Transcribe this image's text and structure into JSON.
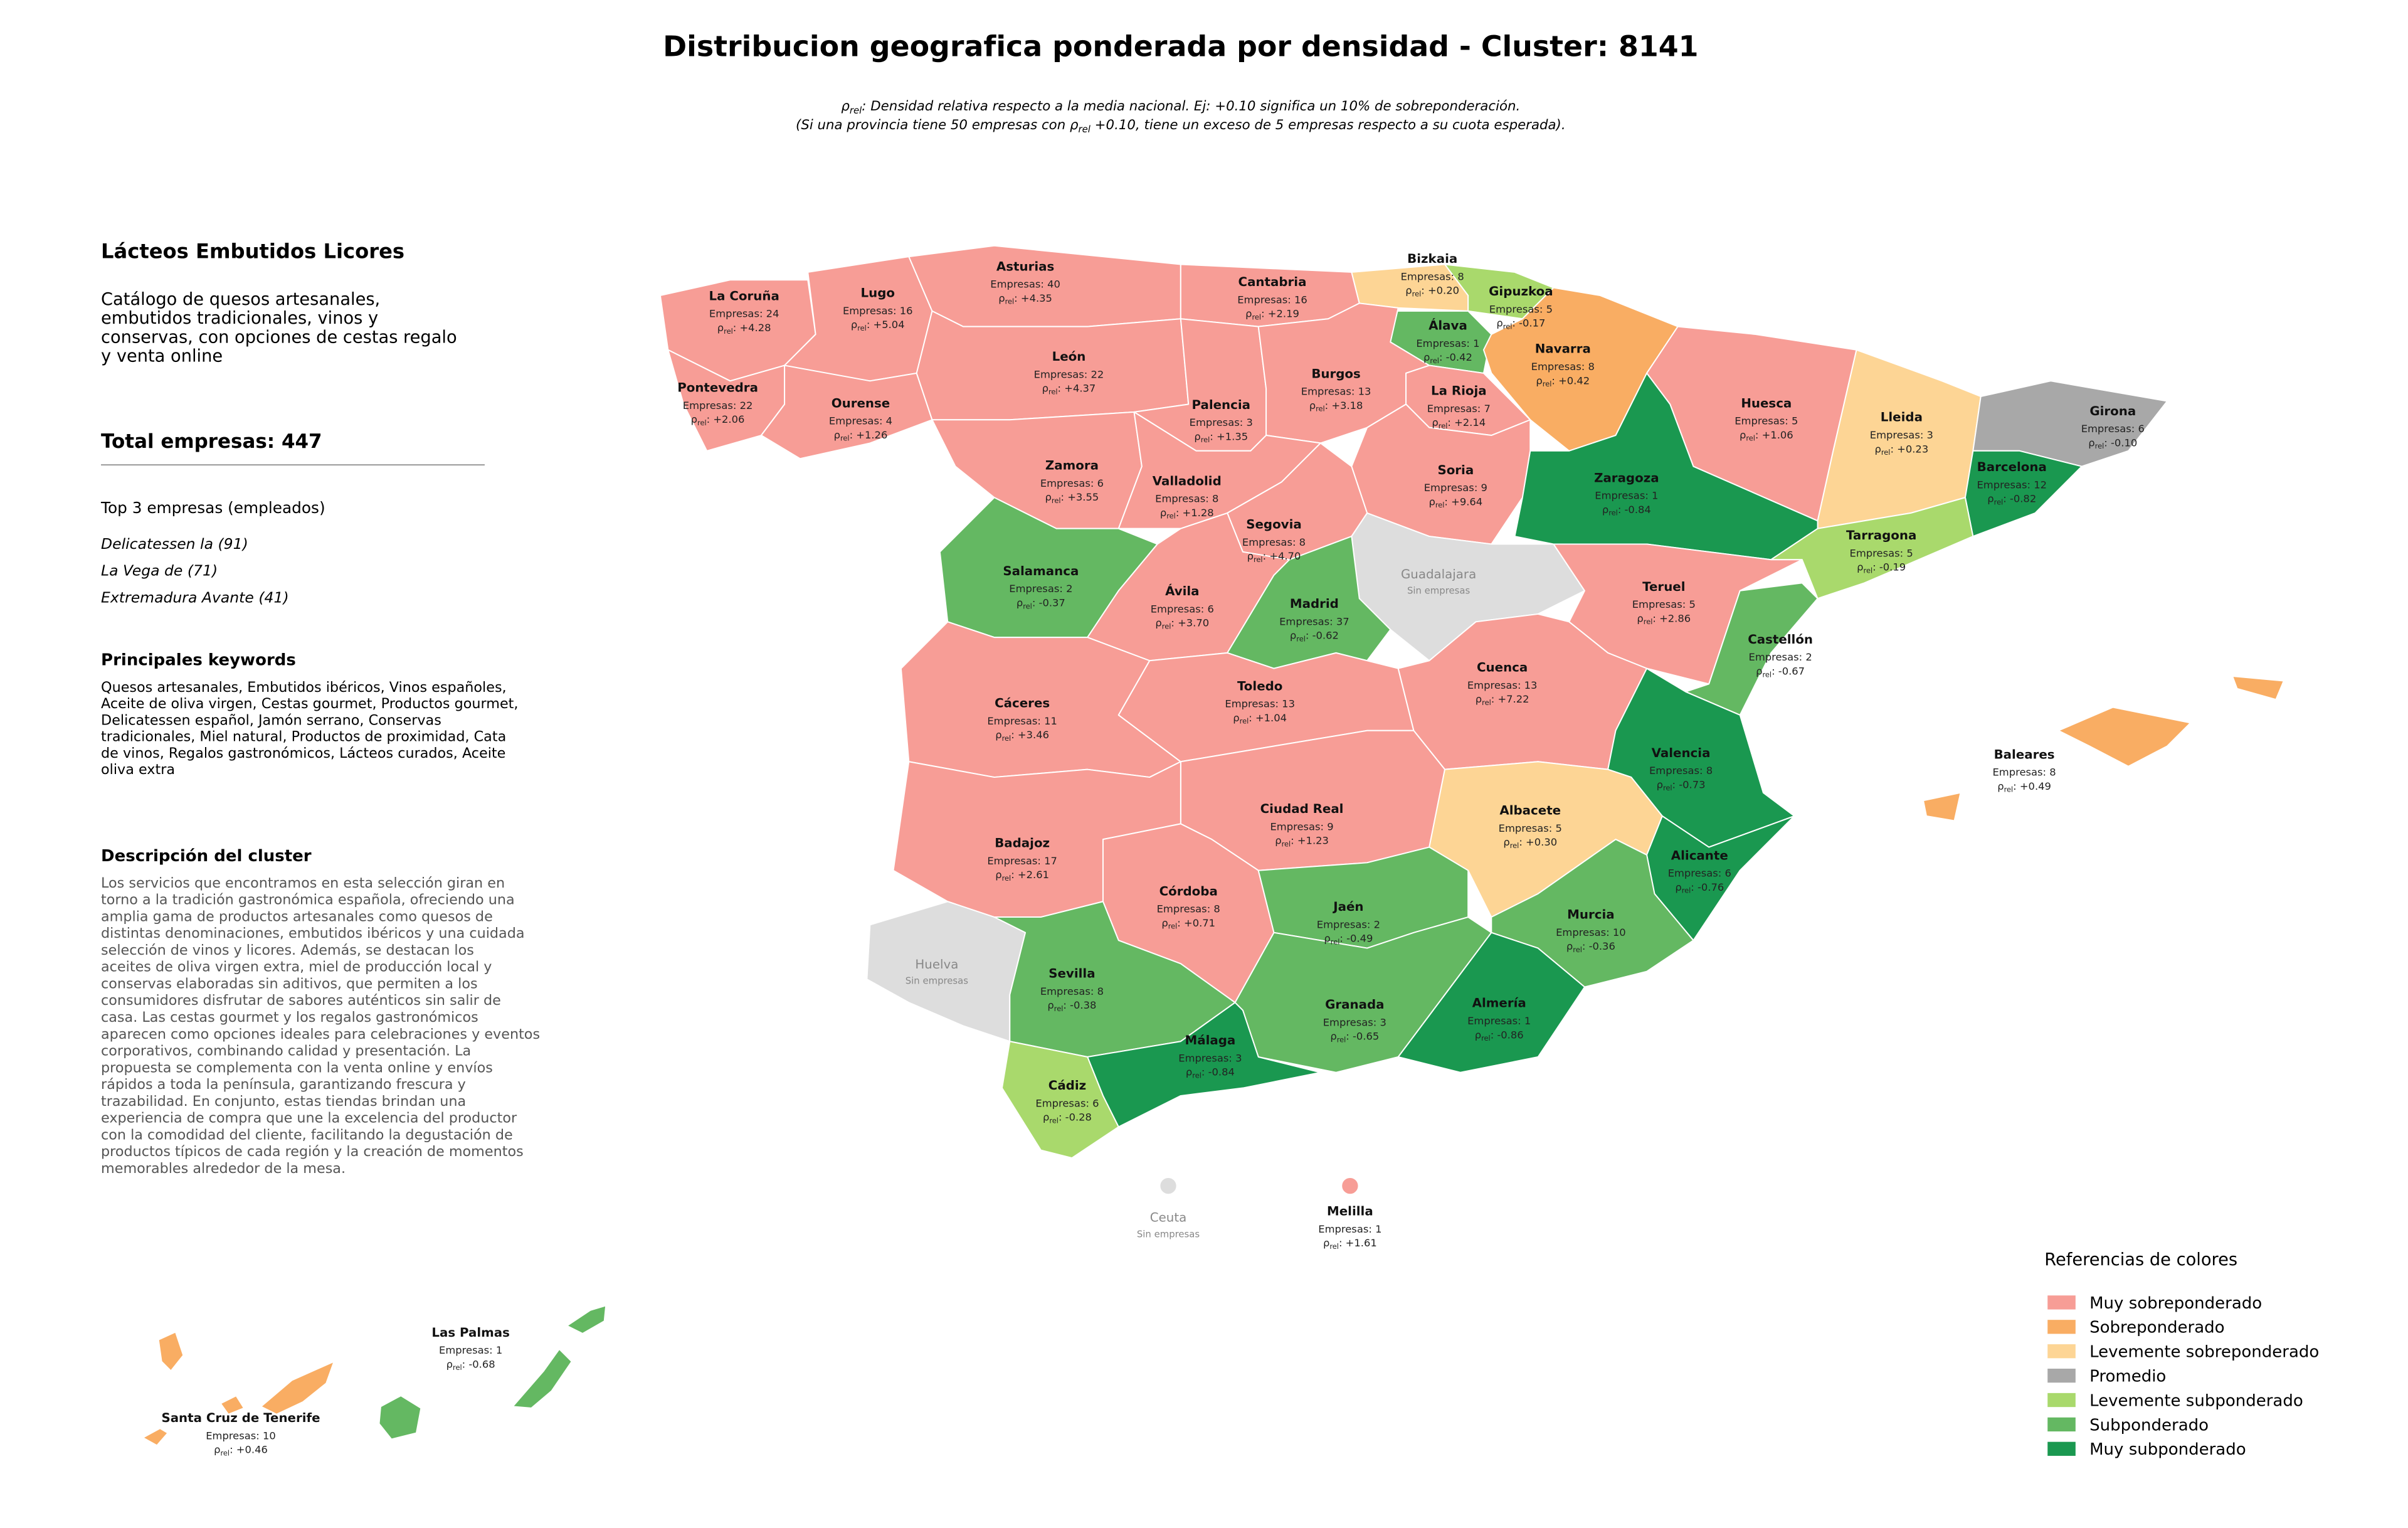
{
  "title": "Distribucion geografica ponderada por densidad - Cluster: 8141",
  "subtitle": [
    [
      {
        "text": "ρ"
      },
      {
        "text": "rel",
        "sub": true
      },
      {
        "text": ": Densidad relativa respecto a la media nacional. Ej: +0.10 significa un 10% de sobreponderación."
      }
    ],
    [
      {
        "text": "(Si una provincia tiene 50 empresas con "
      },
      {
        "text": "ρ"
      },
      {
        "text": "rel",
        "sub": true
      },
      {
        "text": " +0.10, tiene un exceso de 5 empresas respecto a su cuota esperada)."
      }
    ]
  ],
  "sidebar": {
    "cluster_name": "Lácteos Embutidos Licores",
    "catalog": [
      "Catálogo de quesos artesanales,",
      "embutidos tradicionales, vinos y",
      "conservas, con opciones de cestas regalo",
      "y venta online"
    ],
    "total_label": "Total empresas:",
    "total": 447,
    "top_title": "Top 3 empresas (empleados)",
    "top": [
      "Delicatessen la (91)",
      "La Vega de (71)",
      "Extremadura Avante (41)"
    ],
    "keywords_title": "Principales keywords",
    "keywords": [
      "Quesos artesanales, Embutidos ibéricos, Vinos españoles,",
      "Aceite de oliva virgen, Cestas gourmet, Productos gourmet,",
      "Delicatessen español, Jamón serrano, Conservas",
      "tradicionales, Miel natural, Productos de proximidad, Cata",
      "de vinos, Regalos gastronómicos, Lácteos curados, Aceite",
      "oliva extra"
    ],
    "description_title": "Descripción del cluster",
    "description": [
      "Los servicios que encontramos en esta selección giran en",
      "torno a la tradición gastronómica española, ofreciendo una",
      "amplia gama de productos artesanales como quesos de",
      "distintas denominaciones, embutidos ibéricos y una cuidada",
      "selección de vinos y licores. Además, se destacan los",
      "aceites de oliva virgen extra, miel de producción local y",
      "conservas elaboradas sin aditivos, que permiten a los",
      "consumidores disfrutar de sabores auténticos sin salir de",
      "casa. Las cestas gourmet y los regalos gastronómicos",
      "aparecen como opciones ideales para celebraciones y eventos",
      "corporativos, combinando calidad y presentación. La",
      "propuesta se complementa con la venta online y envíos",
      "rápidos a toda la península, garantizando frescura y",
      "trazabilidad. En conjunto, estas tiendas brindan una",
      "experiencia de compra que une la excelencia del productor",
      "con la comodidad del cliente, facilitando la degustación de",
      "productos típicos de cada región y la creación de momentos",
      "memorables alrededor de la mesa."
    ]
  },
  "labels": {
    "empresas": "Empresas: ",
    "rho": "ρ",
    "rho_sub": "rel",
    "rho_sep": ": "
  },
  "provinces": [
    {
      "name": "La Coruña",
      "empresas": 24,
      "rho": {
        "value": 4.28,
        "label": "+4.28"
      },
      "color": "#f79d96"
    },
    {
      "name": "Lugo",
      "empresas": 16,
      "rho": {
        "value": 5.04,
        "label": "+5.04"
      },
      "color": "#f79d96"
    },
    {
      "name": "Asturias",
      "empresas": 40,
      "rho": {
        "value": 4.35,
        "label": "+4.35"
      },
      "color": "#f79d96"
    },
    {
      "name": "Cantabria",
      "empresas": 16,
      "rho": {
        "value": 2.19,
        "label": "+2.19"
      },
      "color": "#f79d96"
    },
    {
      "name": "Bizkaia",
      "empresas": 8,
      "rho": {
        "value": 0.2,
        "label": "+0.20"
      },
      "color": "#fdd595"
    },
    {
      "name": "Gipuzkoa",
      "empresas": 5,
      "rho": {
        "value": -0.17,
        "label": "-0.17"
      },
      "color": "#a9d96c"
    },
    {
      "name": "Álava",
      "empresas": 1,
      "rho": {
        "value": -0.42,
        "label": "-0.42"
      },
      "color": "#64b862"
    },
    {
      "name": "Navarra",
      "empresas": 8,
      "rho": {
        "value": 0.42,
        "label": "+0.42"
      },
      "color": "#f9ad63"
    },
    {
      "name": "Pontevedra",
      "empresas": 22,
      "rho": {
        "value": 2.06,
        "label": "+2.06"
      },
      "color": "#f79d96"
    },
    {
      "name": "Ourense",
      "empresas": 4,
      "rho": {
        "value": 1.26,
        "label": "+1.26"
      },
      "color": "#f79d96"
    },
    {
      "name": "León",
      "empresas": 22,
      "rho": {
        "value": 4.37,
        "label": "+4.37"
      },
      "color": "#f79d96"
    },
    {
      "name": "Palencia",
      "empresas": 3,
      "rho": {
        "value": 1.35,
        "label": "+1.35"
      },
      "color": "#f79d96"
    },
    {
      "name": "Burgos",
      "empresas": 13,
      "rho": {
        "value": 3.18,
        "label": "+3.18"
      },
      "color": "#f79d96"
    },
    {
      "name": "La Rioja",
      "empresas": 7,
      "rho": {
        "value": 2.14,
        "label": "+2.14"
      },
      "color": "#f79d96"
    },
    {
      "name": "Huesca",
      "empresas": 5,
      "rho": {
        "value": 1.06,
        "label": "+1.06"
      },
      "color": "#f79d96"
    },
    {
      "name": "Lleida",
      "empresas": 3,
      "rho": {
        "value": 0.23,
        "label": "+0.23"
      },
      "color": "#fdd595"
    },
    {
      "name": "Girona",
      "empresas": 6,
      "rho": {
        "value": -0.1,
        "label": "-0.10"
      },
      "color": "#a8a8a8"
    },
    {
      "name": "Zamora",
      "empresas": 6,
      "rho": {
        "value": 3.55,
        "label": "+3.55"
      },
      "color": "#f79d96"
    },
    {
      "name": "Valladolid",
      "empresas": 8,
      "rho": {
        "value": 1.28,
        "label": "+1.28"
      },
      "color": "#f79d96"
    },
    {
      "name": "Soria",
      "empresas": 9,
      "rho": {
        "value": 9.64,
        "label": "+9.64"
      },
      "color": "#f79d96"
    },
    {
      "name": "Zaragoza",
      "empresas": 1,
      "rho": {
        "value": -0.84,
        "label": "-0.84"
      },
      "color": "#1a9850"
    },
    {
      "name": "Barcelona",
      "empresas": 12,
      "rho": {
        "value": -0.82,
        "label": "-0.82"
      },
      "color": "#1a9850"
    },
    {
      "name": "Segovia",
      "empresas": 8,
      "rho": {
        "value": 4.7,
        "label": "+4.70"
      },
      "color": "#f79d96"
    },
    {
      "name": "Tarragona",
      "empresas": 5,
      "rho": {
        "value": -0.19,
        "label": "-0.19"
      },
      "color": "#a9d96c"
    },
    {
      "name": "Salamanca",
      "empresas": 2,
      "rho": {
        "value": -0.37,
        "label": "-0.37"
      },
      "color": "#64b862"
    },
    {
      "name": "Guadalajara",
      "note": "Sin empresas",
      "color": "#dddddd"
    },
    {
      "name": "Ávila",
      "empresas": 6,
      "rho": {
        "value": 3.7,
        "label": "+3.70"
      },
      "color": "#f79d96"
    },
    {
      "name": "Madrid",
      "empresas": 37,
      "rho": {
        "value": -0.62,
        "label": "-0.62"
      },
      "color": "#64b862"
    },
    {
      "name": "Teruel",
      "empresas": 5,
      "rho": {
        "value": 2.86,
        "label": "+2.86"
      },
      "color": "#f79d96"
    },
    {
      "name": "Castellón",
      "empresas": 2,
      "rho": {
        "value": -0.67,
        "label": "-0.67"
      },
      "color": "#64b862"
    },
    {
      "name": "Cáceres",
      "empresas": 11,
      "rho": {
        "value": 3.46,
        "label": "+3.46"
      },
      "color": "#f79d96"
    },
    {
      "name": "Toledo",
      "empresas": 13,
      "rho": {
        "value": 1.04,
        "label": "+1.04"
      },
      "color": "#f79d96"
    },
    {
      "name": "Cuenca",
      "empresas": 13,
      "rho": {
        "value": 7.22,
        "label": "+7.22"
      },
      "color": "#f79d96"
    },
    {
      "name": "Valencia",
      "empresas": 8,
      "rho": {
        "value": -0.73,
        "label": "-0.73"
      },
      "color": "#1a9850"
    },
    {
      "name": "Baleares",
      "empresas": 8,
      "rho": {
        "value": 0.49,
        "label": "+0.49"
      },
      "color": "#f9ad63"
    },
    {
      "name": "Ciudad Real",
      "empresas": 9,
      "rho": {
        "value": 1.23,
        "label": "+1.23"
      },
      "color": "#f79d96"
    },
    {
      "name": "Albacete",
      "empresas": 5,
      "rho": {
        "value": 0.3,
        "label": "+0.30"
      },
      "color": "#fdd595"
    },
    {
      "name": "Badajoz",
      "empresas": 17,
      "rho": {
        "value": 2.61,
        "label": "+2.61"
      },
      "color": "#f79d96"
    },
    {
      "name": "Alicante",
      "empresas": 6,
      "rho": {
        "value": -0.76,
        "label": "-0.76"
      },
      "color": "#1a9850"
    },
    {
      "name": "Córdoba",
      "empresas": 8,
      "rho": {
        "value": 0.71,
        "label": "+0.71"
      },
      "color": "#f79d96"
    },
    {
      "name": "Jaén",
      "empresas": 2,
      "rho": {
        "value": -0.49,
        "label": "-0.49"
      },
      "color": "#64b862"
    },
    {
      "name": "Murcia",
      "empresas": 10,
      "rho": {
        "value": -0.36,
        "label": "-0.36"
      },
      "color": "#64b862"
    },
    {
      "name": "Huelva",
      "note": "Sin empresas",
      "color": "#dddddd"
    },
    {
      "name": "Sevilla",
      "empresas": 8,
      "rho": {
        "value": -0.38,
        "label": "-0.38"
      },
      "color": "#64b862"
    },
    {
      "name": "Granada",
      "empresas": 3,
      "rho": {
        "value": -0.65,
        "label": "-0.65"
      },
      "color": "#64b862"
    },
    {
      "name": "Almería",
      "empresas": 1,
      "rho": {
        "value": -0.86,
        "label": "-0.86"
      },
      "color": "#1a9850"
    },
    {
      "name": "Málaga",
      "empresas": 3,
      "rho": {
        "value": -0.84,
        "label": "-0.84"
      },
      "color": "#1a9850"
    },
    {
      "name": "Cádiz",
      "empresas": 6,
      "rho": {
        "value": -0.28,
        "label": "-0.28"
      },
      "color": "#a9d96c"
    },
    {
      "name": "Ceuta",
      "note": "Sin empresas",
      "color": "#dddddd"
    },
    {
      "name": "Melilla",
      "empresas": 1,
      "rho": {
        "value": 1.61,
        "label": "+1.61"
      },
      "color": "#f79d96"
    },
    {
      "name": "Las Palmas",
      "empresas": 1,
      "rho": {
        "value": -0.68,
        "label": "-0.68"
      },
      "color": "#64b862"
    },
    {
      "name": "Santa Cruz de Tenerife",
      "empresas": 10,
      "rho": {
        "value": 0.46,
        "label": "+0.46"
      },
      "color": "#f9ad63"
    }
  ],
  "legend": {
    "title": "Referencias de colores",
    "items": [
      {
        "label": "Muy sobreponderado",
        "color": "#f79d96"
      },
      {
        "label": "Sobreponderado",
        "color": "#f9ad63"
      },
      {
        "label": "Levemente sobreponderado",
        "color": "#fdd595"
      },
      {
        "label": "Promedio",
        "color": "#a8a8a8"
      },
      {
        "label": "Levemente subponderado",
        "color": "#a9d96c"
      },
      {
        "label": "Subponderado",
        "color": "#64b862"
      },
      {
        "label": "Muy subponderado",
        "color": "#1a9850"
      }
    ]
  }
}
